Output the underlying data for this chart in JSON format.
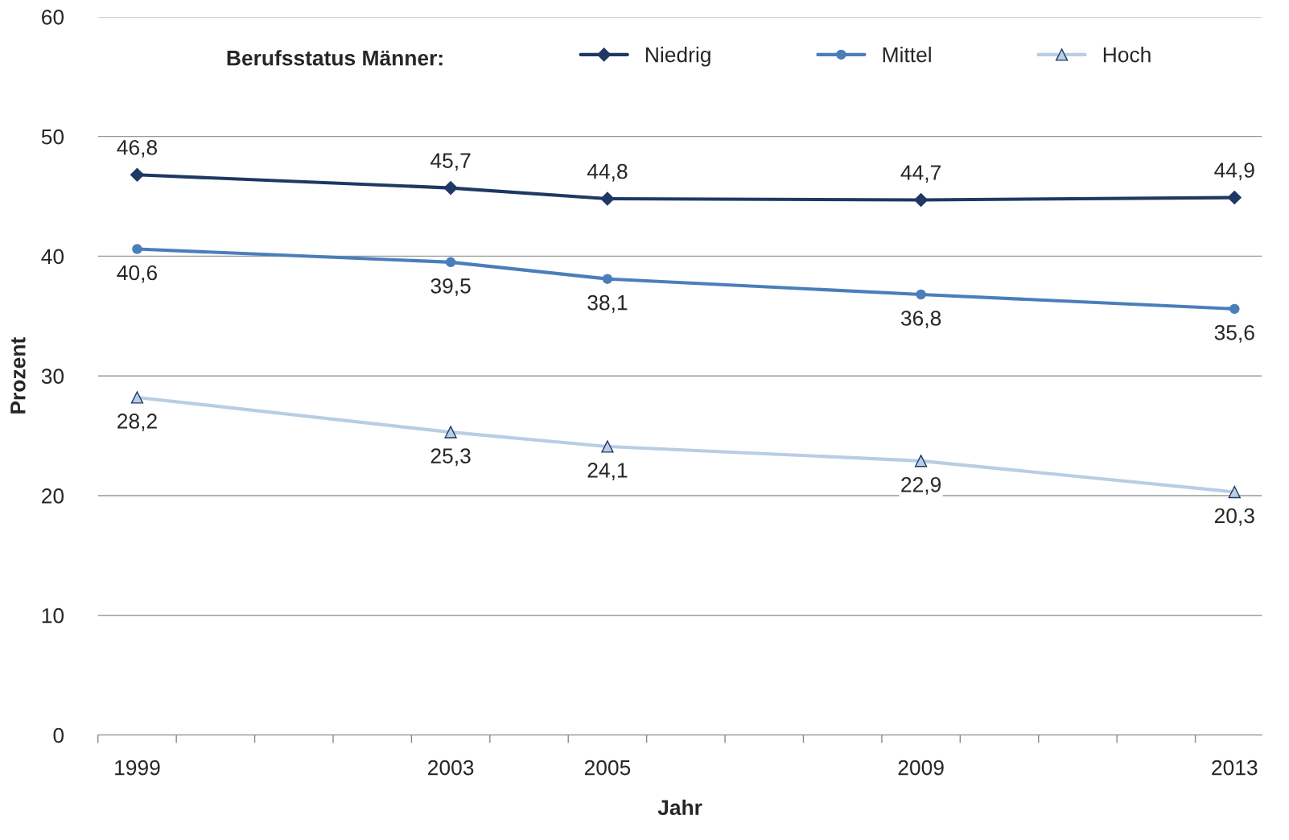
{
  "chart_data": {
    "type": "line",
    "xlabel": "Jahr",
    "ylabel": "Prozent",
    "legend_title": "Berufsstatus Männer:",
    "legend": "top",
    "x": [
      1999,
      2003,
      2005,
      2009,
      2013
    ],
    "series": [
      {
        "name": "Niedrig",
        "color": "#1f3864",
        "marker": "diamond",
        "values": [
          46.8,
          45.7,
          44.8,
          44.7,
          44.9
        ],
        "value_labels": [
          "46,8",
          "45,7",
          "44,8",
          "44,7",
          "44,9"
        ]
      },
      {
        "name": "Mittel",
        "color": "#4a7ebb",
        "marker": "circle",
        "values": [
          40.6,
          39.5,
          38.1,
          36.8,
          35.6
        ],
        "value_labels": [
          "40,6",
          "39,5",
          "38,1",
          "36,8",
          "35,6"
        ]
      },
      {
        "name": "Hoch",
        "color": "#b9cde5",
        "marker": "triangle",
        "values": [
          28.2,
          25.3,
          24.1,
          22.9,
          20.3
        ],
        "value_labels": [
          "28,2",
          "25,3",
          "24,1",
          "22,9",
          "20,3"
        ]
      }
    ],
    "grid": "y",
    "xlim": [
      1998.5,
      2013.35
    ],
    "xticks": [
      1999,
      2003,
      2005,
      2009,
      2013,
      {
        "value": 1998.5,
        "label": null
      },
      {
        "value": 1999.5,
        "label": null
      },
      {
        "value": 2000.5,
        "label": null
      },
      {
        "value": 2001.5,
        "label": null
      },
      {
        "value": 2002.5,
        "label": null
      },
      {
        "value": 2003.5,
        "label": null
      },
      {
        "value": 2004.5,
        "label": null
      },
      {
        "value": 2005.5,
        "label": null
      },
      {
        "value": 2006.5,
        "label": null
      },
      {
        "value": 2007.5,
        "label": null
      },
      {
        "value": 2008.5,
        "label": null
      },
      {
        "value": 2009.5,
        "label": null
      },
      {
        "value": 2010.5,
        "label": null
      },
      {
        "value": 2011.5,
        "label": null
      },
      {
        "value": 2012.5,
        "label": null
      }
    ],
    "ylim": [
      0,
      60
    ],
    "yticks": [
      0,
      10,
      20,
      30,
      40,
      50,
      60
    ]
  }
}
